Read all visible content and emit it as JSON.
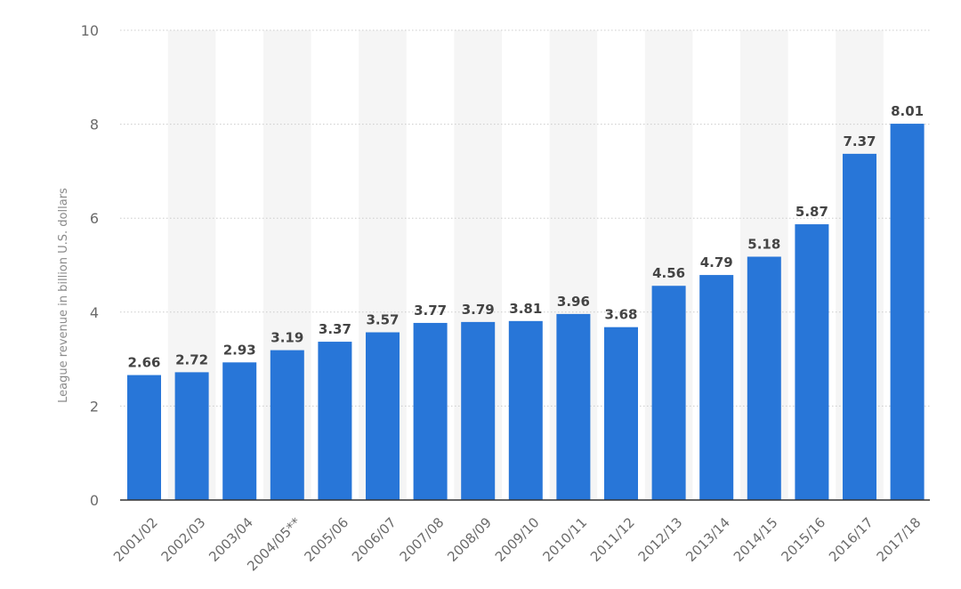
{
  "chart_data": {
    "type": "bar",
    "categories": [
      "2001/02",
      "2002/03",
      "2003/04",
      "2004/05**",
      "2005/06",
      "2006/07",
      "2007/08",
      "2008/09",
      "2009/10",
      "2010/11",
      "2011/12",
      "2012/13",
      "2013/14",
      "2014/15",
      "2015/16",
      "2016/17",
      "2017/18"
    ],
    "values": [
      2.66,
      2.72,
      2.93,
      3.19,
      3.37,
      3.57,
      3.77,
      3.79,
      3.81,
      3.96,
      3.68,
      4.56,
      4.79,
      5.18,
      5.87,
      7.37,
      8.01
    ],
    "data_labels": [
      "2.66",
      "2.72",
      "2.93",
      "3.19",
      "3.37",
      "3.57",
      "3.77",
      "3.79",
      "3.81",
      "3.96",
      "3.68",
      "4.56",
      "4.79",
      "5.18",
      "5.87",
      "7.37",
      "8.01"
    ],
    "title": "",
    "xlabel": "",
    "ylabel": "League revenue in billion U.S. dollars",
    "ylim": [
      0,
      10
    ],
    "yticks": [
      0,
      2,
      4,
      6,
      8,
      10
    ],
    "ytick_labels": [
      "0",
      "2",
      "4",
      "6",
      "8",
      "10"
    ],
    "grid": true,
    "legend": "none",
    "colors": {
      "bar": "#2876d8",
      "band": "#f5f5f5",
      "grid": "#cccccc",
      "axis": "#333333"
    }
  }
}
